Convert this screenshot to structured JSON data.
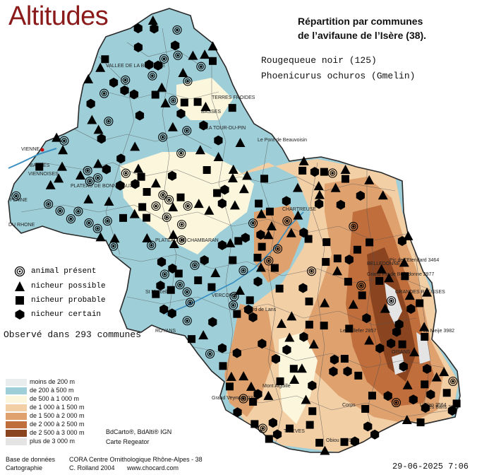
{
  "title": "Altitudes",
  "subtitle_line1": "Répartition par communes",
  "subtitle_line2": "de l’avifaune de l’Isère (38).",
  "species_common": "Rougequeue noir  (125)",
  "species_latin": "Phoenicurus ochuros (Gmelin)",
  "observed_text": "Observé dans 293 communes",
  "legend": [
    {
      "symbol": "animal-present",
      "label": "animal présent"
    },
    {
      "symbol": "nicheur-possible",
      "label": "nicheur possible"
    },
    {
      "symbol": "nicheur-probable",
      "label": "nicheur probable"
    },
    {
      "symbol": "nicheur-certain",
      "label": "nicheur certain"
    }
  ],
  "altitude_legend": [
    {
      "label": "moins de 200 m",
      "color": "#e9edee"
    },
    {
      "label": "de 200 à 500 m",
      "color": "#9ecfd9"
    },
    {
      "label": "de 500 à 1 000 m",
      "color": "#fbf6dc"
    },
    {
      "label": "de 1 000 à 1 500 m",
      "color": "#f3cfa6"
    },
    {
      "label": "de 1 500 à 2 000 m",
      "color": "#dfa26f"
    },
    {
      "label": "de 2 000 à 2 500 m",
      "color": "#bf6e3c"
    },
    {
      "label": "de 2 500 à 3 000 m",
      "color": "#8a4420"
    },
    {
      "label": "plus de 3 000 m",
      "color": "#e4e4e4"
    }
  ],
  "base_credits": "BdCarto®, BdAlti® IGN",
  "base_credits2": "Carte Regeator",
  "source_label1": "Base de données",
  "source_value1": "CORA Centre Ornithologique Rhône-Alpes - 38",
  "source_label2": "Cartographie",
  "source_value2": "C. Rolland 2004",
  "source_url": "www.chocard.com",
  "date": "29-06-2025 7:06",
  "place_labels": [
    "VIENNE",
    "BALMES",
    "VIENNOISES",
    "PLAINE",
    "DU RHONE",
    "PLATEAU DE BONNEVAUX",
    "VALLEE DE LA BOURBRE",
    "TERRES FROIDES",
    "BASSES",
    "LA TOUR-DU-PIN",
    "Le Pont de Beauvoisin",
    "CHARTREUSE",
    "PLATEAU DE CHAMBARAN",
    "ROYANS",
    "St Marcellin",
    "VERCORS",
    "TRIEVES",
    "OISANS",
    "GRANDES ROUSSES",
    "BELLEDONNE",
    "Villard de Lans",
    "Corps",
    "Pic de l'Etendard 3464",
    "La Meije 3982",
    "Les Bans 3669",
    "L'Olan 3564",
    "Grand Pic de Belledonne 2977",
    "Le Taillefer 2857",
    "Grand Veymont 2341",
    "Mont Aiguille",
    "Obiou 2789"
  ],
  "colors": {
    "title": "#8b1a1a",
    "border": "#2a2a2a",
    "symbol": "#000000",
    "city_dot": "#cc0000"
  }
}
